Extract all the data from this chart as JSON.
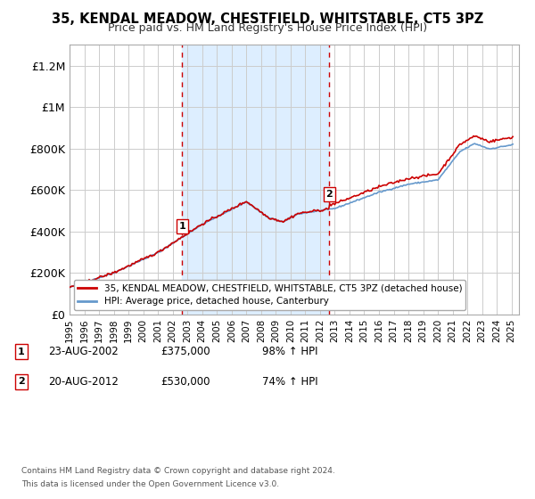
{
  "title": "35, KENDAL MEADOW, CHESTFIELD, WHITSTABLE, CT5 3PZ",
  "subtitle": "Price paid vs. HM Land Registry's House Price Index (HPI)",
  "legend_line1": "35, KENDAL MEADOW, CHESTFIELD, WHITSTABLE, CT5 3PZ (detached house)",
  "legend_line2": "HPI: Average price, detached house, Canterbury",
  "sale1_label": "1",
  "sale1_date": "23-AUG-2002",
  "sale1_price": "£375,000",
  "sale1_hpi": "98% ↑ HPI",
  "sale1_year": 2002.64,
  "sale1_value": 375000,
  "sale2_label": "2",
  "sale2_date": "20-AUG-2012",
  "sale2_price": "£530,000",
  "sale2_hpi": "74% ↑ HPI",
  "sale2_year": 2012.64,
  "sale2_value": 530000,
  "footer1": "Contains HM Land Registry data © Crown copyright and database right 2024.",
  "footer2": "This data is licensed under the Open Government Licence v3.0.",
  "red_color": "#cc0000",
  "blue_color": "#6699cc",
  "shade_color": "#ddeeff",
  "vline_color": "#cc0000",
  "background_color": "#ffffff",
  "grid_color": "#cccccc",
  "ylim": [
    0,
    1300000
  ],
  "xlim_start": 1995,
  "xlim_end": 2025.5
}
